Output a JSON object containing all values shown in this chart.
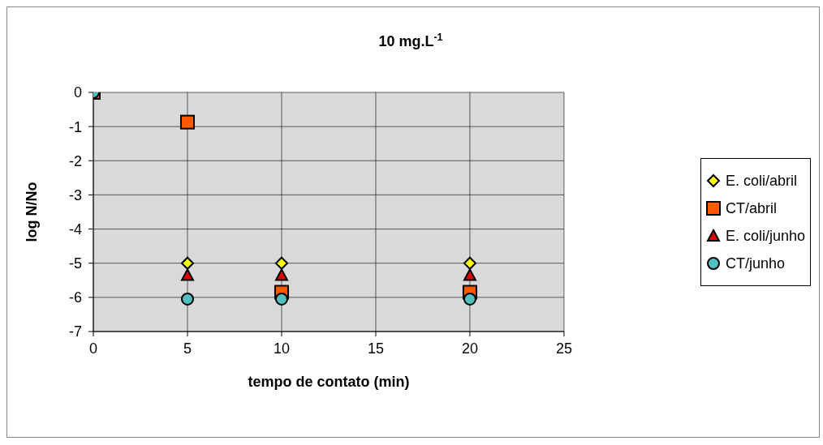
{
  "chart_data": {
    "type": "scatter",
    "title": "10 mg.L$^{-1}$",
    "xlabel": "tempo de contato (min)",
    "ylabel": "log N/No",
    "x": [
      0,
      5,
      10,
      20
    ],
    "series": [
      {
        "name": "E. coli/abril",
        "color": "#ffff00",
        "marker": "diamond",
        "values": [
          null,
          -5,
          -5,
          -5
        ]
      },
      {
        "name": "CT/abril",
        "color": "#ff5a00",
        "marker": "square",
        "values": [
          0,
          -0.87,
          -5.85,
          -5.85
        ]
      },
      {
        "name": "E. coli/junho",
        "color": "#e00000",
        "marker": "triangle",
        "values": [
          null,
          -5.35,
          -5.35,
          -5.35
        ]
      },
      {
        "name": "CT/junho",
        "color": "#4fbfbf",
        "marker": "circle",
        "values": [
          0,
          -6.05,
          -6.05,
          -6.05
        ]
      }
    ],
    "xlim": [
      0,
      25
    ],
    "xticks": [
      0,
      5,
      10,
      15,
      20,
      25
    ],
    "ylim": [
      -7,
      0
    ],
    "yticks": [
      -7,
      -6,
      -5,
      -4,
      -3,
      -2,
      -1,
      0
    ],
    "grid": true,
    "legend": "right"
  }
}
